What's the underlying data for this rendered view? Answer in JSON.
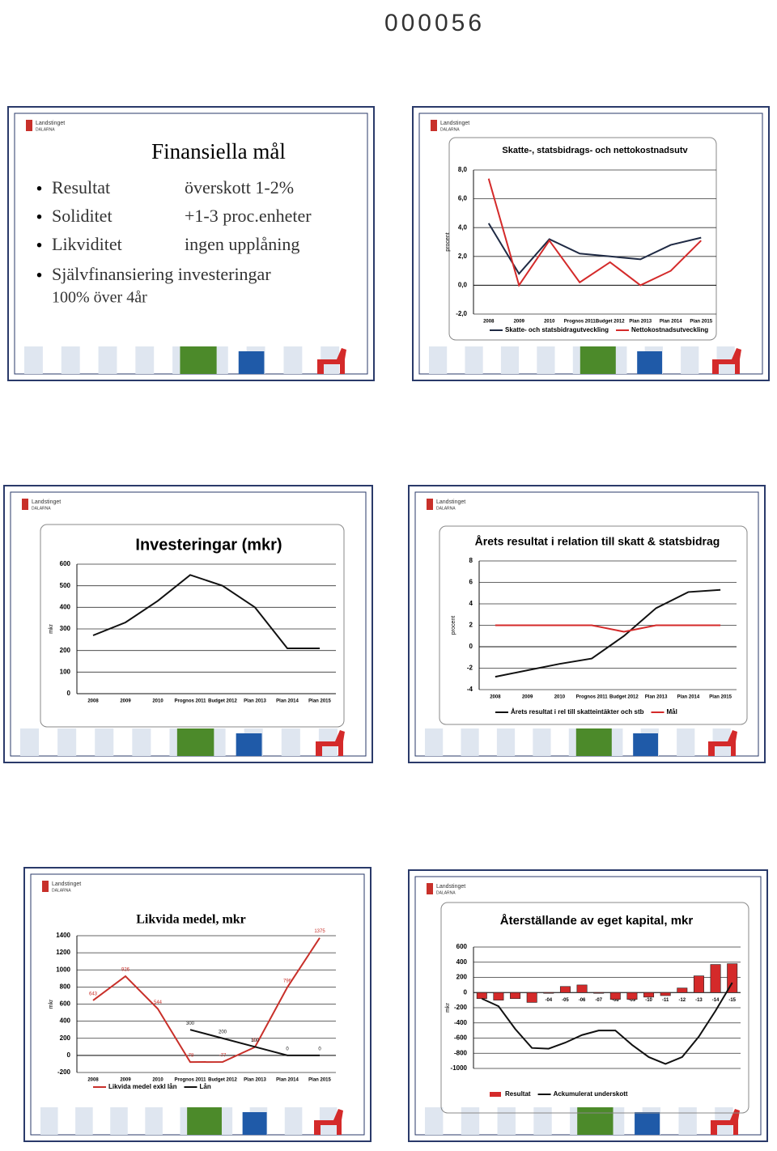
{
  "page_number": "000056",
  "logo": "Landstinget",
  "logo_sub": "DALARNA",
  "slides": [
    {
      "title": "Finansiella mål",
      "rows": [
        [
          "Resultat",
          "överskott 1-2%"
        ],
        [
          "Soliditet",
          "+1-3 proc.enheter"
        ],
        [
          "Likviditet",
          "ingen upplåning"
        ]
      ],
      "bullets": [
        "Självfinansiering investeringar"
      ],
      "note": "100% över 4år"
    },
    {
      "chart": {
        "type": "line",
        "title": "Skatte-, statsbidrags- och nettokostnadsutv",
        "y_label": "procent",
        "categories": [
          "2008",
          "2009",
          "2010",
          "Prognos 2011",
          "Budget 2012",
          "Plan 2013",
          "Plan 2014",
          "Plan 2015"
        ],
        "series": [
          {
            "name": "Skatte- och statsbidragutveckling",
            "color": "#1f2a44",
            "values": [
              4.3,
              0.8,
              3.2,
              2.2,
              2.0,
              1.8,
              2.8,
              3.3
            ]
          },
          {
            "name": "Nettokostnadsutveckling",
            "color": "#d42a2a",
            "values": [
              7.4,
              0.0,
              3.1,
              0.2,
              1.6,
              0.0,
              1.0,
              3.1
            ]
          }
        ],
        "ylim": [
          -2,
          8
        ],
        "yticks": [
          {
            "value": -2,
            "label": "-2,0"
          },
          {
            "value": 0,
            "label": "0,0"
          },
          {
            "value": 2,
            "label": "2,0"
          },
          {
            "value": 4,
            "label": "4,0"
          },
          {
            "value": 6,
            "label": "6,0"
          },
          {
            "value": 8,
            "label": "8,0"
          }
        ],
        "grid": true
      }
    },
    {
      "chart": {
        "type": "line",
        "title": "Investeringar (mkr)",
        "y_label": "mkr",
        "categories": [
          "2008",
          "2009",
          "2010",
          "Prognos 2011",
          "Budget 2012",
          "Plan 2013",
          "Plan 2014",
          "Plan 2015"
        ],
        "series": [
          {
            "color": "#111111",
            "values": [
              270,
              330,
              430,
              550,
              500,
              400,
              210,
              210
            ]
          }
        ],
        "ylim": [
          0,
          600
        ],
        "yticks": [
          0,
          100,
          200,
          300,
          400,
          500,
          600
        ],
        "grid": true
      }
    },
    {
      "chart": {
        "type": "line",
        "title": "Årets resultat i relation till skatt & statsbidrag",
        "y_label": "procent",
        "categories": [
          "2008",
          "2009",
          "2010",
          "Prognos 2011",
          "Budget 2012",
          "Plan 2013",
          "Plan 2014",
          "Plan 2015"
        ],
        "series": [
          {
            "name": "Årets resultat i rel till skatteintäkter och stb",
            "color": "#111111",
            "values": [
              -2.8,
              -2.2,
              -1.6,
              -1.1,
              1.0,
              3.6,
              5.1,
              5.3
            ]
          },
          {
            "name": "Mål",
            "color": "#d42a2a",
            "values": [
              2,
              2,
              2,
              2,
              1.4,
              2,
              2,
              2
            ]
          }
        ],
        "ylim": [
          -4,
          8
        ],
        "yticks": [
          -4,
          -2,
          0,
          2,
          4,
          6,
          8
        ],
        "grid": true
      }
    },
    {
      "chart": {
        "type": "line",
        "title": "Likvida medel, mkr",
        "y_label": "mkr",
        "data_labels": true,
        "categories": [
          "2008",
          "2009",
          "2010",
          "Prognos 2011",
          "Budget 2012",
          "Plan 2013",
          "Plan 2014",
          "Plan 2015"
        ],
        "series": [
          {
            "name": "Likvida medel exkl lån",
            "color": "#c8302a",
            "values": [
              643,
              926,
              544,
              -78,
              -77,
              97,
              796,
              1375
            ]
          },
          {
            "name": "Lån",
            "color": "#111111",
            "values": [
              null,
              null,
              null,
              300,
              200,
              100,
              0,
              0
            ]
          }
        ],
        "ylim": [
          -200,
          1400
        ],
        "yticks": [
          -200,
          0,
          200,
          400,
          600,
          800,
          1000,
          1200,
          1400
        ],
        "grid": true
      }
    },
    {
      "chart": {
        "type": "bar",
        "title": "Återställande av eget kapital, mkr",
        "y_label": "mkr",
        "categories": [
          null,
          null,
          null,
          null,
          "-04",
          "-05",
          "-06",
          "-07",
          "-08",
          "-09",
          "-10",
          "-11",
          "-12",
          "-13",
          "-14",
          "-15"
        ],
        "series": [
          {
            "name": "Resultat",
            "type": "bar",
            "color": "#d42a2a",
            "values": [
              -80,
              -100,
              -80,
              -130,
              -10,
              80,
              100,
              -10,
              -90,
              -90,
              -60,
              -40,
              60,
              220,
              370,
              380
            ]
          },
          {
            "name": "Ackumulerat underskott",
            "type": "line",
            "color": "#111111",
            "values": [
              -80,
              -180,
              -480,
              -730,
              -740,
              -660,
              -560,
              -500,
              -500,
              -690,
              -850,
              -940,
              -850,
              -580,
              -240,
              130
            ]
          }
        ],
        "ylim": [
          -1000,
          600
        ],
        "yticks": [
          -1000,
          -800,
          -600,
          -400,
          -200,
          0,
          200,
          400,
          600
        ],
        "grid": true
      }
    }
  ]
}
